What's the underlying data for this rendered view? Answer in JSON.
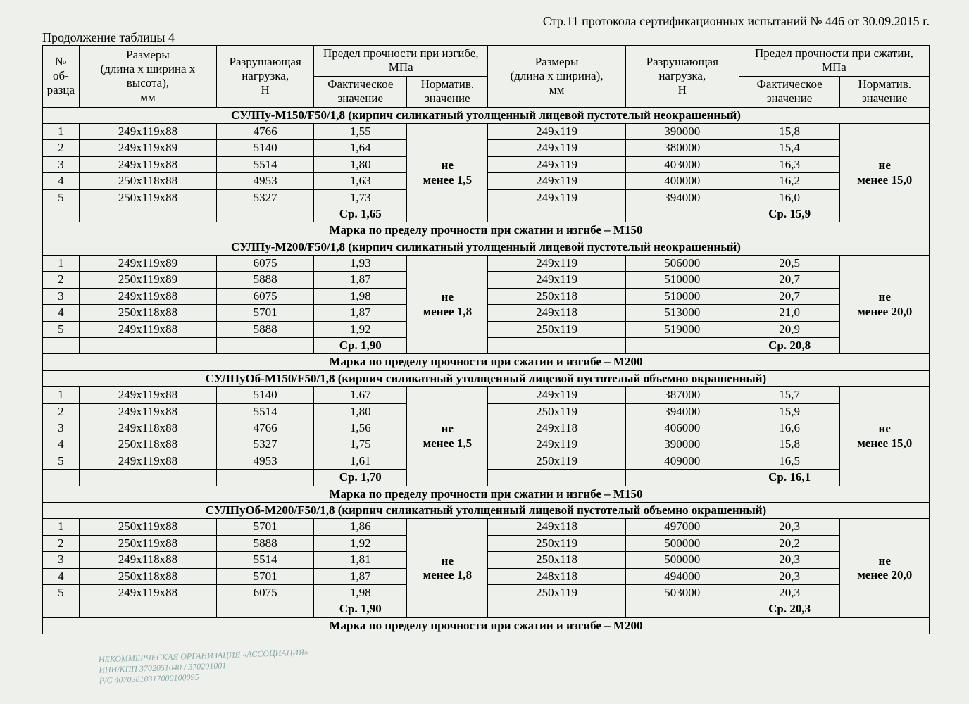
{
  "header_right": "Стр.11 протокола сертификационных испытаний № 446 от  30.09.2015 г.",
  "continuation": "Продолжение таблицы 4",
  "columns": {
    "num": "№ об-разца",
    "dims1": "Размеры\n(длина х  ширина х высота),\nмм",
    "load1": "Разрушающая нагрузка,\nН",
    "bend_group": "Предел прочности при изгибе, МПа",
    "fact1": "Фактическое значение",
    "norm1": "Норматив. значение",
    "dims2": "Размеры\n(длина х ширина),\nмм",
    "load2": "Разрушающая нагрузка,\nН",
    "comp_group": "Предел прочности при сжатии, МПа",
    "fact2": "Фактическое значение",
    "norm2": "Норматив. значение"
  },
  "groups": [
    {
      "title": "СУЛПу-М150/F50/1,8 (кирпич силикатный утолщенный лицевой пустотелый неокрашенный)",
      "norm_bend": "не менее 1,5",
      "norm_comp": "не менее 15,0",
      "rows": [
        {
          "n": "1",
          "d1": "249х119х88",
          "l1": "4766",
          "f1": "1,55",
          "d2": "249х119",
          "l2": "390000",
          "f2": "15,8"
        },
        {
          "n": "2",
          "d1": "249х119х89",
          "l1": "5140",
          "f1": "1,64",
          "d2": "249х119",
          "l2": "380000",
          "f2": "15,4"
        },
        {
          "n": "3",
          "d1": "249х119х88",
          "l1": "5514",
          "f1": "1,80",
          "d2": "249х119",
          "l2": "403000",
          "f2": "16,3"
        },
        {
          "n": "4",
          "d1": "250х118х88",
          "l1": "4953",
          "f1": "1,63",
          "d2": "249х119",
          "l2": "400000",
          "f2": "16,2"
        },
        {
          "n": "5",
          "d1": "250х119х88",
          "l1": "5327",
          "f1": "1,73",
          "d2": "249х119",
          "l2": "394000",
          "f2": "16,0"
        }
      ],
      "avg_bend": "Ср. 1,65",
      "avg_comp": "Ср. 15,9",
      "mark": "Марка по пределу прочности при сжатии и изгибе – М150"
    },
    {
      "title": "СУЛПу-М200/F50/1,8 (кирпич силикатный утолщенный лицевой пустотелый неокрашенный)",
      "norm_bend": "не менее 1,8",
      "norm_comp": "не менее 20,0",
      "rows": [
        {
          "n": "1",
          "d1": "249х119х89",
          "l1": "6075",
          "f1": "1,93",
          "d2": "249х119",
          "l2": "506000",
          "f2": "20,5"
        },
        {
          "n": "2",
          "d1": "250х119х89",
          "l1": "5888",
          "f1": "1,87",
          "d2": "249х119",
          "l2": "510000",
          "f2": "20,7"
        },
        {
          "n": "3",
          "d1": "249х119х88",
          "l1": "6075",
          "f1": "1,98",
          "d2": "250х118",
          "l2": "510000",
          "f2": "20,7"
        },
        {
          "n": "4",
          "d1": "250х118х88",
          "l1": "5701",
          "f1": "1,87",
          "d2": "249х118",
          "l2": "513000",
          "f2": "21,0"
        },
        {
          "n": "5",
          "d1": "249х119х88",
          "l1": "5888",
          "f1": "1,92",
          "d2": "250х119",
          "l2": "519000",
          "f2": "20,9"
        }
      ],
      "avg_bend": "Ср. 1,90",
      "avg_comp": "Ср. 20,8",
      "mark": "Марка по пределу прочности при сжатии и изгибе – М200"
    },
    {
      "title": "СУЛПуОб-М150/F50/1,8 (кирпич силикатный утолщенный лицевой пустотелый объемно окрашенный)",
      "norm_bend": "не менее 1,5",
      "norm_comp": "не менее 15,0",
      "rows": [
        {
          "n": "1",
          "d1": "249х119х88",
          "l1": "5140",
          "f1": "1.67",
          "d2": "249х119",
          "l2": "387000",
          "f2": "15,7"
        },
        {
          "n": "2",
          "d1": "249х119х88",
          "l1": "5514",
          "f1": "1,80",
          "d2": "250х119",
          "l2": "394000",
          "f2": "15,9"
        },
        {
          "n": "3",
          "d1": "249х118х88",
          "l1": "4766",
          "f1": "1,56",
          "d2": "249х118",
          "l2": "406000",
          "f2": "16,6"
        },
        {
          "n": "4",
          "d1": "250х118х88",
          "l1": "5327",
          "f1": "1,75",
          "d2": "249х119",
          "l2": "390000",
          "f2": "15,8"
        },
        {
          "n": "5",
          "d1": "249х119х88",
          "l1": "4953",
          "f1": "1,61",
          "d2": "250х119",
          "l2": "409000",
          "f2": "16,5"
        }
      ],
      "avg_bend": "Ср. 1,70",
      "avg_comp": "Ср. 16,1",
      "mark": "Марка по пределу прочности при сжатии и изгибе – М150"
    },
    {
      "title": "СУЛПуОб-М200/F50/1,8 (кирпич силикатный утолщенный лицевой пустотелый объемно окрашенный)",
      "norm_bend": "не менее 1,8",
      "norm_comp": "не менее 20,0",
      "rows": [
        {
          "n": "1",
          "d1": "250х119х88",
          "l1": "5701",
          "f1": "1,86",
          "d2": "249х118",
          "l2": "497000",
          "f2": "20,3"
        },
        {
          "n": "2",
          "d1": "250х119х88",
          "l1": "5888",
          "f1": "1,92",
          "d2": "250х119",
          "l2": "500000",
          "f2": "20,2"
        },
        {
          "n": "3",
          "d1": "249х118х88",
          "l1": "5514",
          "f1": "1,81",
          "d2": "250х118",
          "l2": "500000",
          "f2": "20,3"
        },
        {
          "n": "4",
          "d1": "250х118х88",
          "l1": "5701",
          "f1": "1,87",
          "d2": "248х118",
          "l2": "494000",
          "f2": "20,3"
        },
        {
          "n": "5",
          "d1": "249х119х88",
          "l1": "6075",
          "f1": "1,98",
          "d2": "250х119",
          "l2": "503000",
          "f2": "20,3"
        }
      ],
      "avg_bend": "Ср. 1,90",
      "avg_comp": "Ср. 20,3",
      "mark": "Марка по пределу прочности при сжатии и изгибе – М200"
    }
  ],
  "stamp": {
    "l1": "НЕКОММЕРЧЕСКАЯ ОРГАНИЗАЦИЯ «АССОЦИАЦИЯ»",
    "l2": "ИНН/КПП 3702051040 / 370201001",
    "l3": "Р/С 40703810317000100095"
  }
}
